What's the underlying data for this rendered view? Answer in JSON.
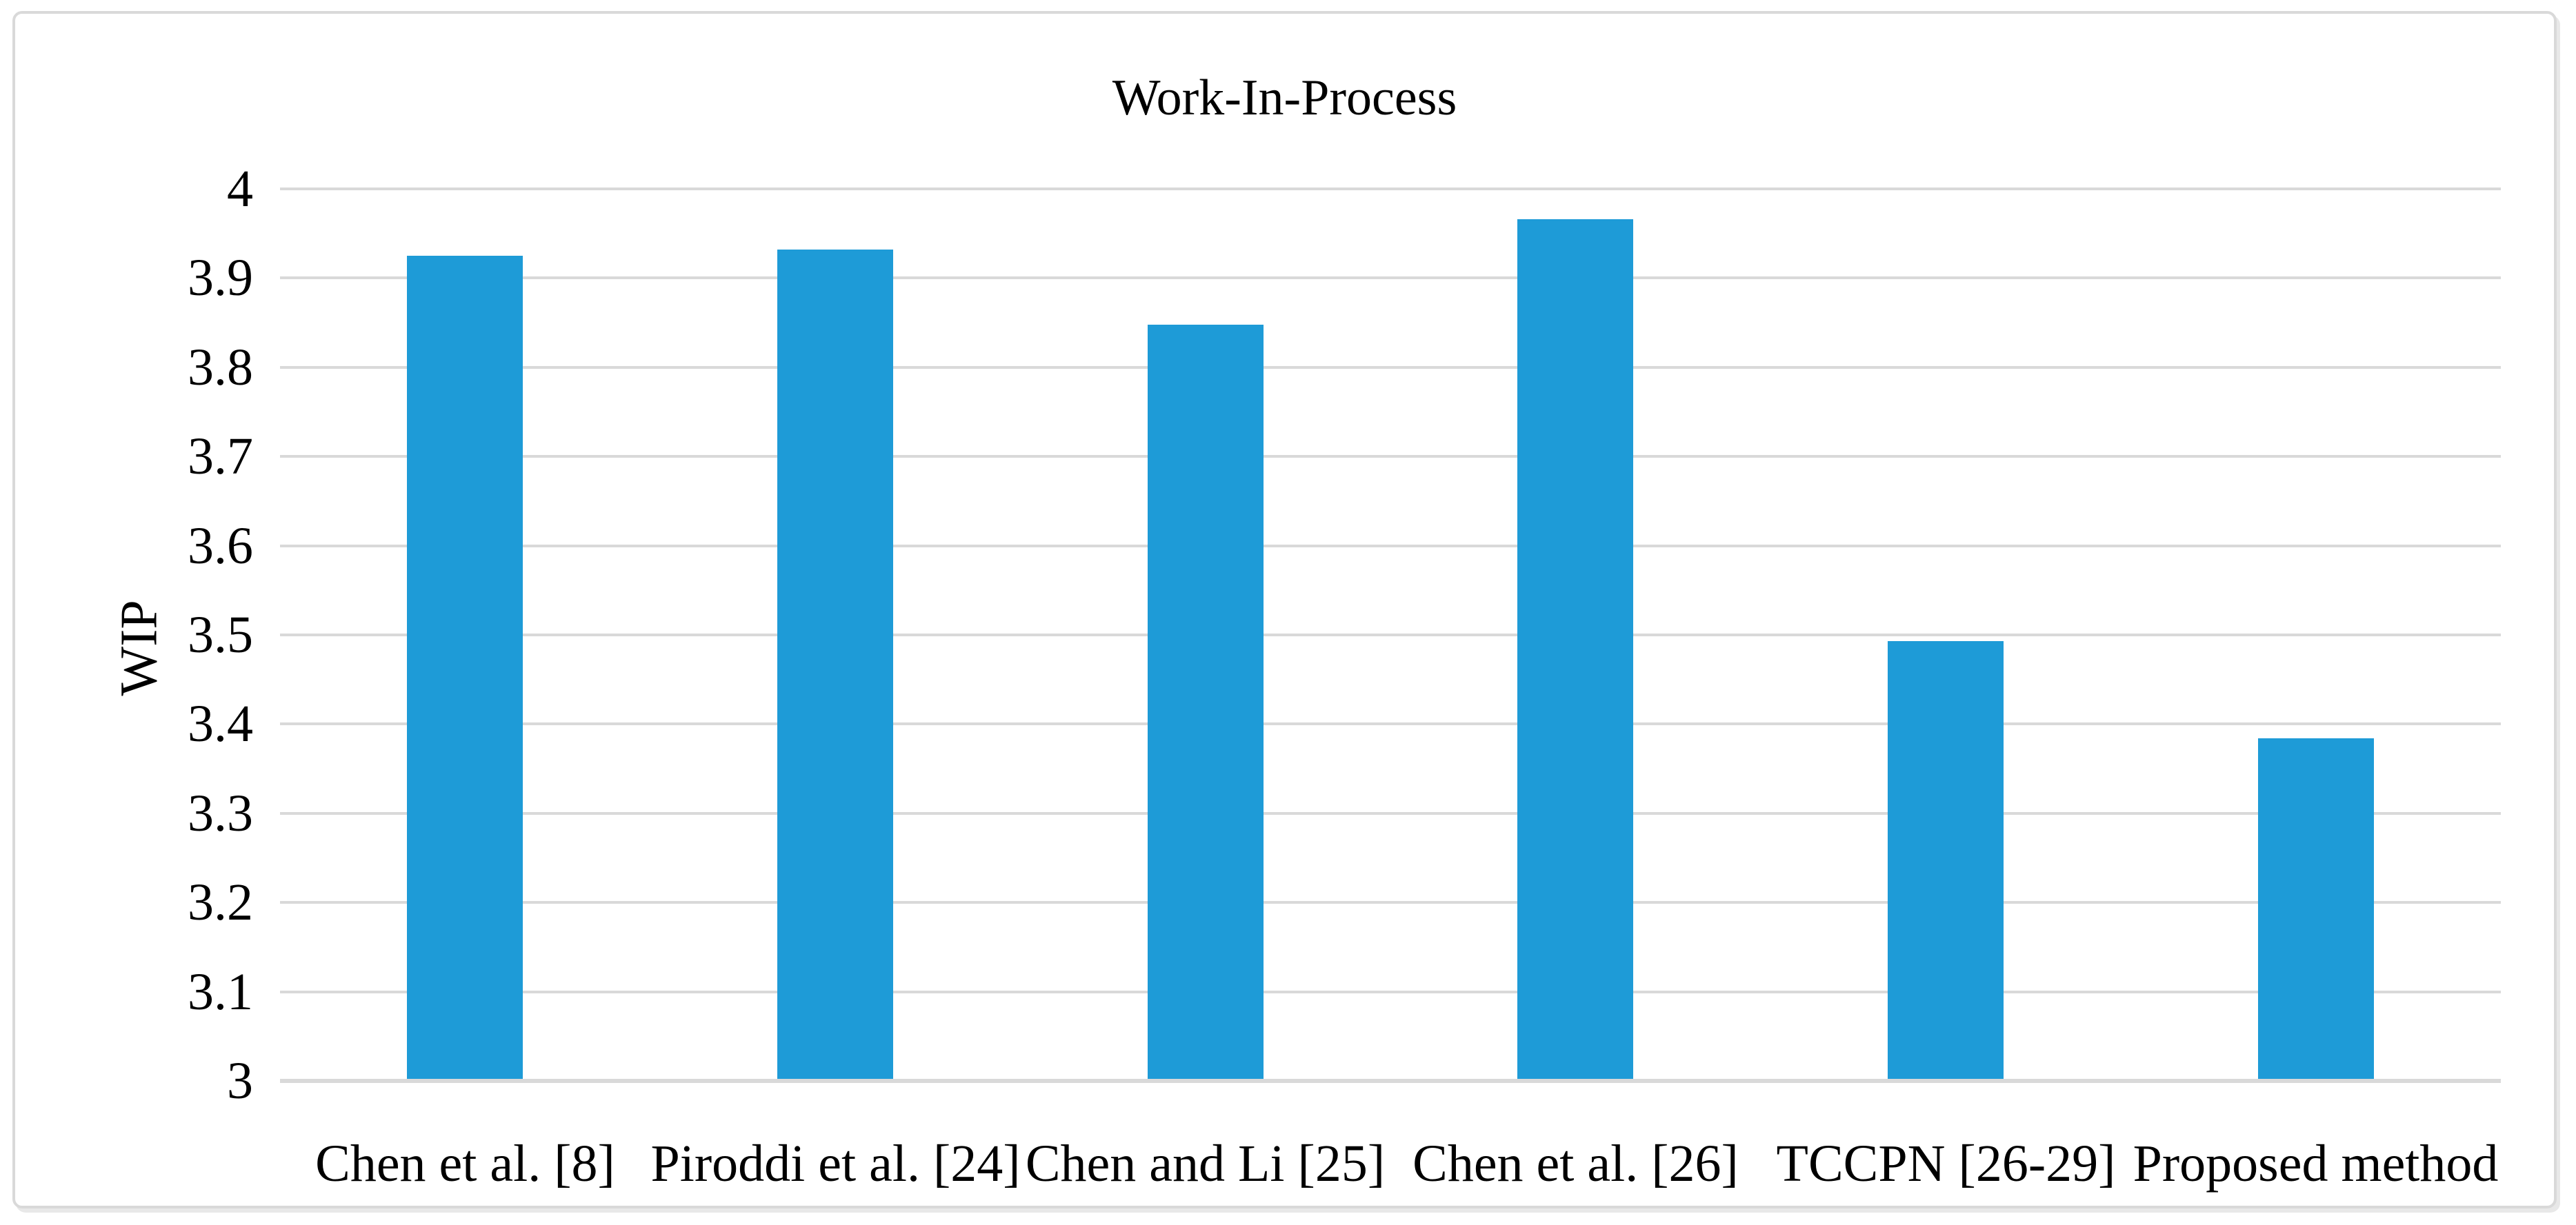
{
  "figure": {
    "background_color": "#ffffff",
    "frame_border_color": "#d9d9d9"
  },
  "chart_data": {
    "type": "bar",
    "title": "Work-In-Process",
    "xlabel": "",
    "ylabel": "WIP",
    "categories": [
      "Chen et al. [8]",
      "Piroddi et al. [24]",
      "Chen and Li [25]",
      "Chen et al. [26]",
      "TCCPN [26-29]",
      "Proposed method"
    ],
    "values": [
      3.925,
      3.932,
      3.848,
      3.966,
      3.493,
      3.384
    ],
    "ylim": [
      3,
      4
    ],
    "ytick_step": 0.1,
    "ytick_labels": [
      "3",
      "3.1",
      "3.2",
      "3.3",
      "3.4",
      "3.5",
      "3.6",
      "3.7",
      "3.8",
      "3.9",
      "4"
    ],
    "grid": true,
    "gridline_color": "#d9d9d9",
    "bar_color": "#1e9bd7",
    "text_color": "#000000",
    "legend": false,
    "legend_position": "none"
  }
}
